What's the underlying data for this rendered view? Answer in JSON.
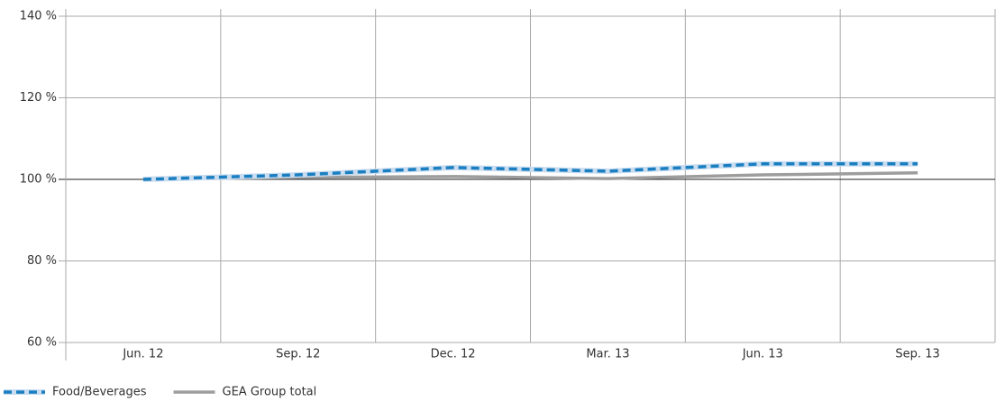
{
  "chart_data": {
    "type": "line",
    "categories": [
      "Jun. 12",
      "Sep. 12",
      "Dec. 12",
      "Mar. 13",
      "Jun. 13",
      "Sep. 13"
    ],
    "series": [
      {
        "name": "Food/Beverages",
        "color": "#1a7fc1",
        "halo": "#c9dcf0",
        "dashed": true,
        "values": [
          100,
          101.1,
          102.9,
          102.0,
          103.8,
          103.8
        ]
      },
      {
        "name": "GEA Group total",
        "color": "#9d9d9d",
        "dashed": false,
        "values": [
          100,
          100.5,
          100.7,
          100.2,
          101.1,
          101.6
        ]
      }
    ],
    "ylim": [
      60,
      140
    ],
    "yticks": [
      {
        "value": 60,
        "label": "60 %"
      },
      {
        "value": 80,
        "label": "80 %"
      },
      {
        "value": 100,
        "label": "100 %"
      },
      {
        "value": 120,
        "label": "120 %"
      },
      {
        "value": 140,
        "label": "140 %"
      }
    ],
    "baseline": 100,
    "grid": true
  }
}
